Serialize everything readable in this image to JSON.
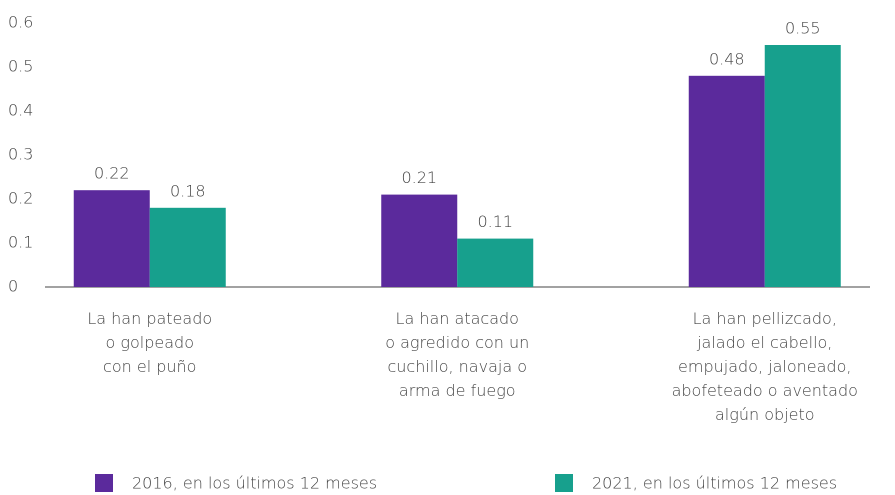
{
  "chart_data": {
    "type": "bar",
    "categories": [
      "La han pateado\no golpeado\ncon el puño",
      "La han atacado\no agredido con un\ncuchillo, navaja o\narma de fuego",
      "La han pellizcado,\njalado el cabello,\nempujado, jaloneado,\nabofeteado o aventado\nalgún objeto"
    ],
    "series": [
      {
        "name": "2016, en los últimos 12 meses",
        "color": "#5b2a9c",
        "values": [
          0.22,
          0.21,
          0.48
        ]
      },
      {
        "name": "2021, en los últimos 12 meses",
        "color": "#17a08d",
        "values": [
          0.18,
          0.11,
          0.55
        ]
      }
    ],
    "ylim": [
      0,
      0.6
    ],
    "yticks": [
      0,
      0.1,
      0.2,
      0.3,
      0.4,
      0.5,
      0.6
    ],
    "grid": false
  }
}
